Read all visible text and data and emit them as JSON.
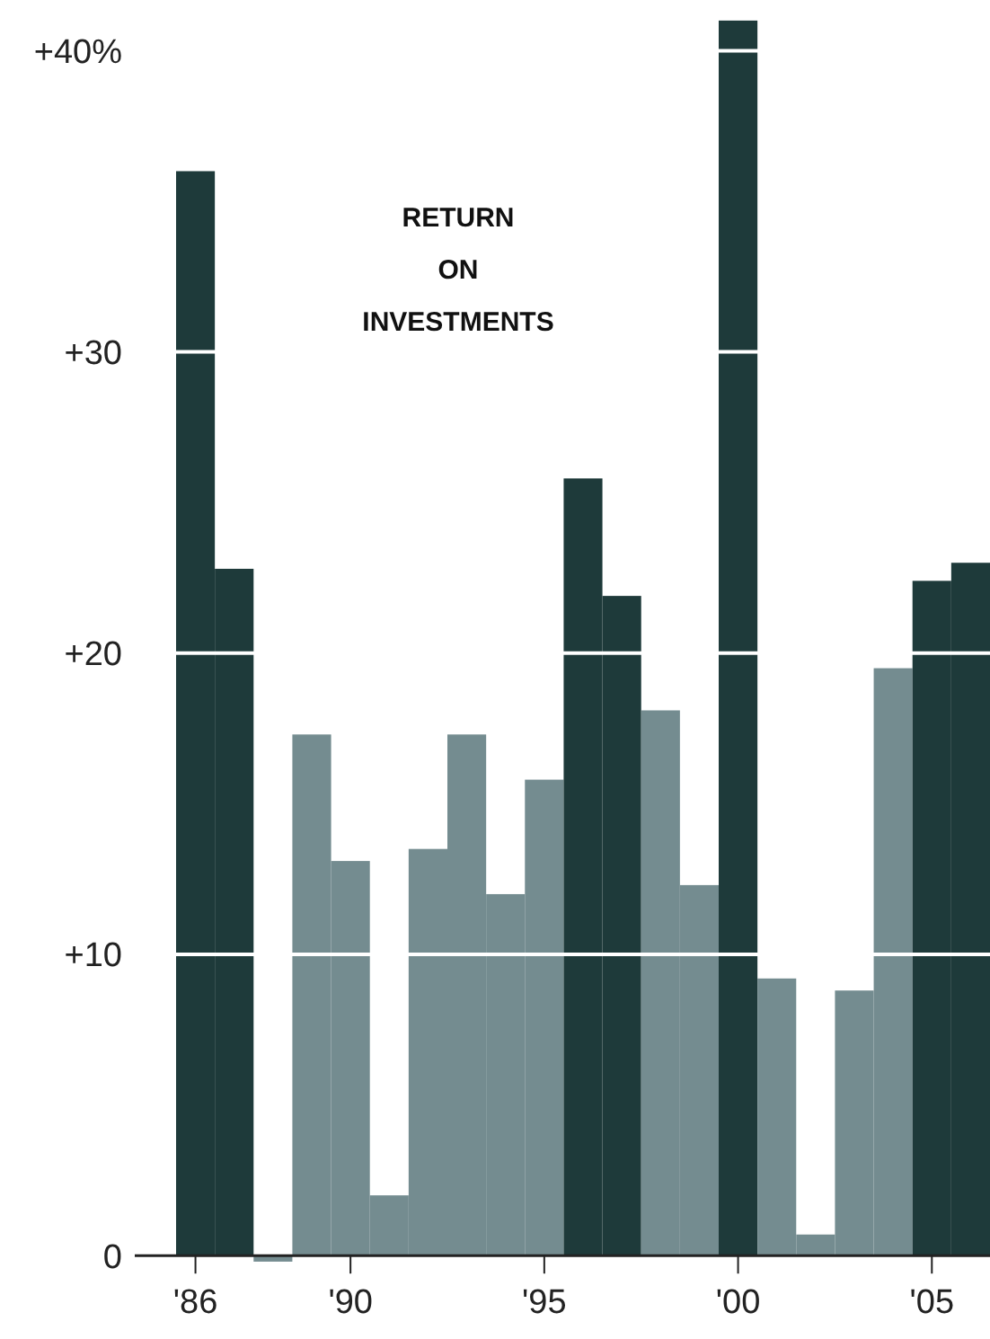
{
  "chart_data": {
    "type": "bar",
    "title": "RETURN\nON\nINVESTMENTS",
    "categories": [
      "'86",
      null,
      null,
      null,
      "'90",
      null,
      null,
      null,
      null,
      "'95",
      null,
      null,
      null,
      null,
      "'00",
      null,
      null,
      null,
      null,
      "'05",
      null
    ],
    "values": [
      36,
      22.8,
      -0.2,
      17.3,
      13.1,
      2.0,
      13.5,
      17.3,
      12.0,
      15.8,
      25.8,
      21.9,
      18.1,
      12.3,
      41,
      9.2,
      0.7,
      8.8,
      19.5,
      22.4,
      23.0
    ],
    "colors": [
      "#1e3a3a",
      "#1e3a3a",
      "#748c90",
      "#748c90",
      "#748c90",
      "#748c90",
      "#748c90",
      "#748c90",
      "#748c90",
      "#748c90",
      "#1e3a3a",
      "#1e3a3a",
      "#748c90",
      "#748c90",
      "#1e3a3a",
      "#748c90",
      "#748c90",
      "#748c90",
      "#748c90",
      "#1e3a3a",
      "#1e3a3a"
    ],
    "ylim": [
      -0.2,
      41.5
    ],
    "yticks": [
      0,
      {
        "value": 10,
        "label": "+10"
      },
      {
        "value": 20,
        "label": "+20"
      },
      {
        "value": 30,
        "label": "+30"
      },
      {
        "value": 40,
        "label": "+40%"
      }
    ],
    "grid": "y"
  }
}
